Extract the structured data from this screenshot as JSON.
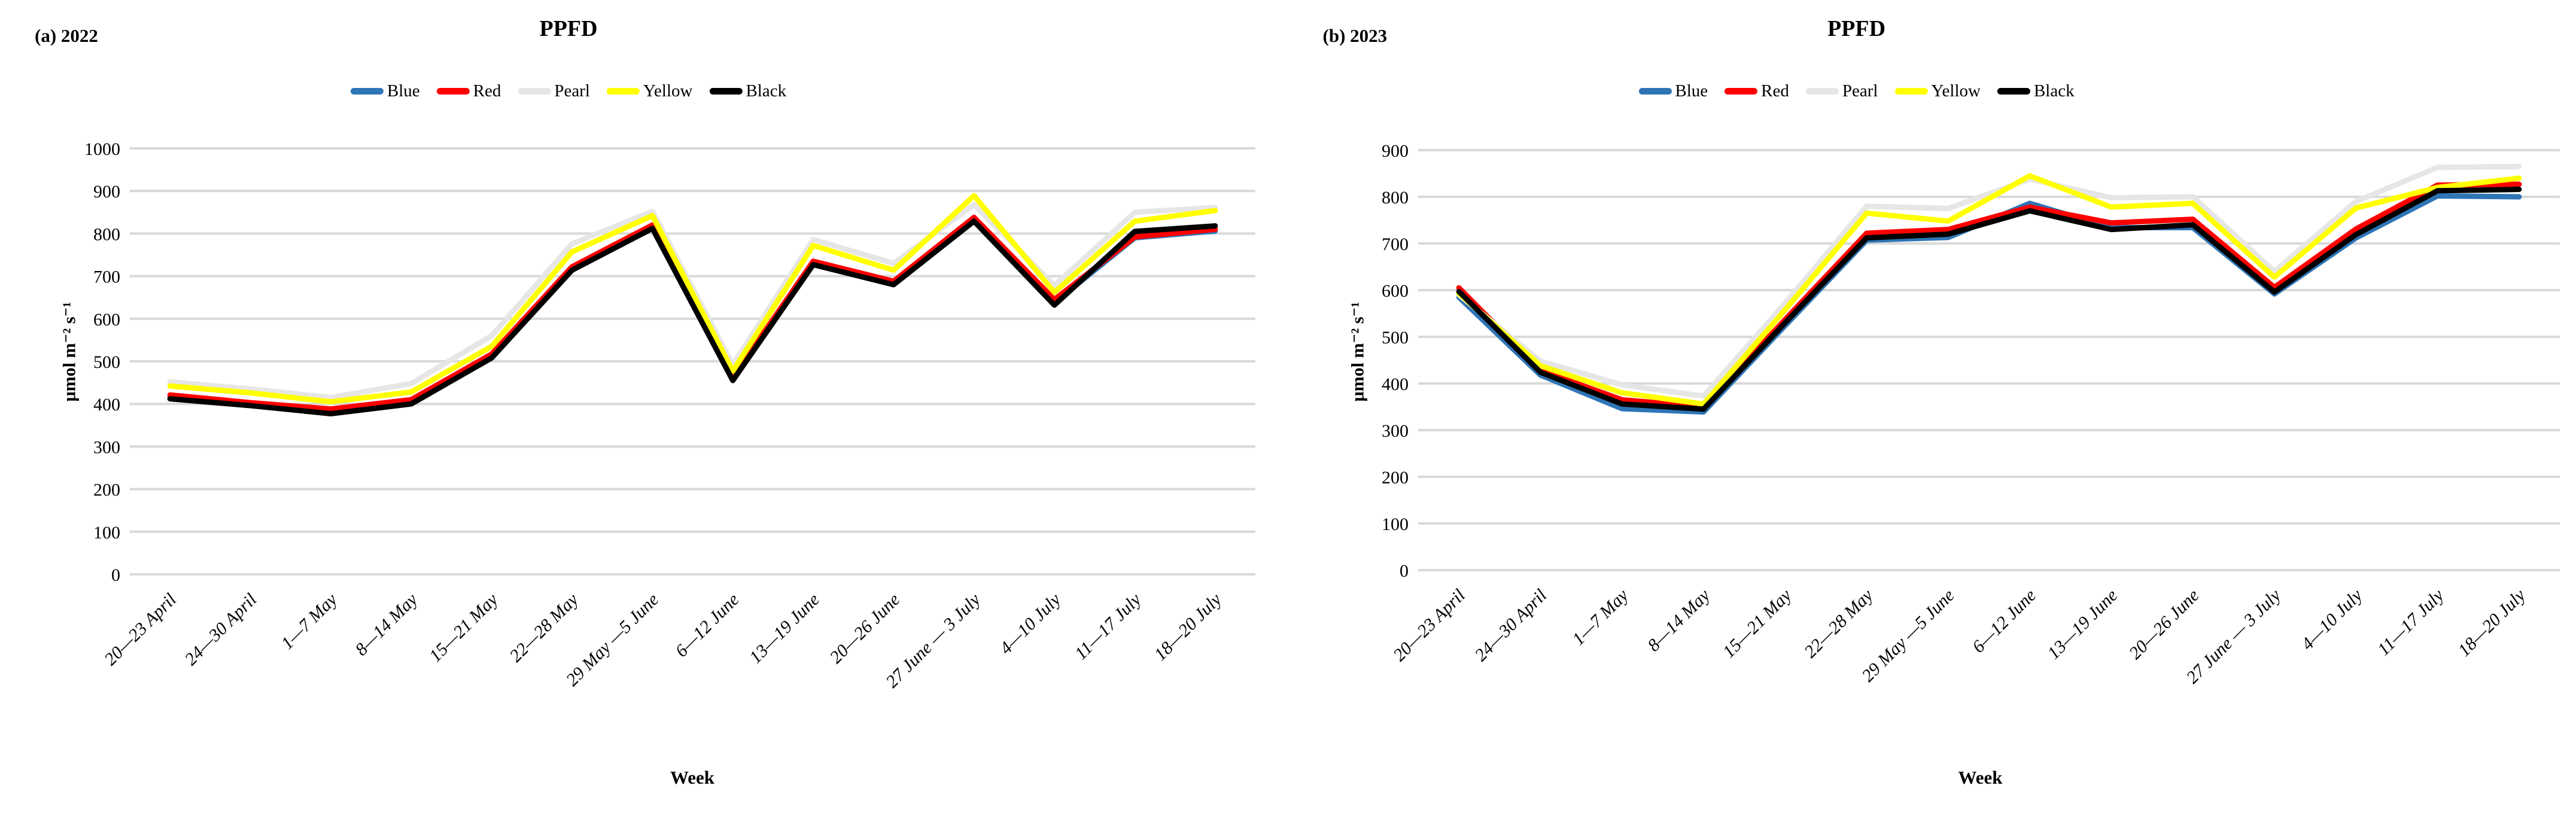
{
  "figure": {
    "background": "#ffffff",
    "gridline_color": "#D9D9D9",
    "panels": [
      {
        "panel_label": "(a) 2022",
        "title": "PPFD",
        "ylabel": "μmol m⁻² s⁻¹",
        "xlabel": "Week"
      },
      {
        "panel_label": "(b) 2023",
        "title": "PPFD",
        "ylabel": "μmol m⁻² s⁻¹",
        "xlabel": "Week"
      }
    ],
    "legend": [
      "Blue",
      "Red",
      "Pearl",
      "Yellow",
      "Black"
    ]
  },
  "chart_data": [
    {
      "type": "line",
      "panel_label": "(a) 2022",
      "title": "PPFD",
      "xlabel": "Week",
      "ylabel": "μmol m⁻² s⁻¹",
      "ylim": [
        0,
        1000
      ],
      "ytick_step": 100,
      "grid": true,
      "legend_position": "top-center",
      "categories": [
        "20—23 April",
        "24—30 April",
        "1—7 May",
        "8—14 May",
        "15—21 May",
        "22—28 May",
        "29 May —5 June",
        "6—12 June",
        "13—19 June",
        "20—26 June",
        "27 June — 3 July",
        "4—10 July",
        "11—17 July",
        "18—20 July"
      ],
      "series": [
        {
          "name": "Blue",
          "color": "#2E75B6",
          "values": [
            416,
            399,
            380,
            403,
            512,
            718,
            816,
            458,
            730,
            683,
            833,
            638,
            790,
            806
          ]
        },
        {
          "name": "Red",
          "color": "#FF0000",
          "values": [
            421,
            403,
            388,
            410,
            517,
            722,
            820,
            462,
            735,
            688,
            838,
            645,
            792,
            810
          ]
        },
        {
          "name": "Pearl",
          "color": "#E7E6E6",
          "values": [
            452,
            435,
            415,
            448,
            560,
            776,
            852,
            492,
            786,
            730,
            868,
            678,
            850,
            861
          ]
        },
        {
          "name": "Yellow",
          "color": "#FFFF00",
          "values": [
            442,
            426,
            405,
            428,
            535,
            757,
            842,
            477,
            772,
            714,
            889,
            662,
            829,
            854
          ]
        },
        {
          "name": "Black",
          "color": "#000000",
          "values": [
            412,
            396,
            377,
            400,
            508,
            714,
            812,
            455,
            727,
            680,
            829,
            632,
            805,
            818
          ]
        }
      ]
    },
    {
      "type": "line",
      "panel_label": "(b) 2023",
      "title": "PPFD",
      "xlabel": "Week",
      "ylabel": "μmol m⁻² s⁻¹",
      "ylim": [
        0,
        900
      ],
      "ytick_step": 100,
      "grid": true,
      "legend_position": "top-center",
      "categories": [
        "20—23 April",
        "24—30 April",
        "1—7 May",
        "8—14 May",
        "15—21 May",
        "22—28 May",
        "29 May —5 June",
        "6—12 June",
        "13—19 June",
        "20—26 June",
        "27 June — 3 July",
        "4—10 July",
        "11—17 July",
        "18—20 July"
      ],
      "series": [
        {
          "name": "Blue",
          "color": "#2E75B6",
          "values": [
            585,
            418,
            346,
            339,
            524,
            707,
            713,
            786,
            734,
            734,
            592,
            712,
            802,
            800
          ]
        },
        {
          "name": "Red",
          "color": "#FF0000",
          "values": [
            605,
            428,
            365,
            350,
            537,
            722,
            730,
            778,
            744,
            752,
            606,
            731,
            825,
            827
          ]
        },
        {
          "name": "Pearl",
          "color": "#E7E6E6",
          "values": [
            590,
            448,
            397,
            373,
            572,
            780,
            775,
            838,
            798,
            800,
            640,
            790,
            863,
            865
          ]
        },
        {
          "name": "Yellow",
          "color": "#FFFF00",
          "values": [
            593,
            438,
            380,
            356,
            558,
            765,
            748,
            845,
            778,
            786,
            628,
            776,
            820,
            840
          ]
        },
        {
          "name": "Black",
          "color": "#000000",
          "values": [
            597,
            424,
            356,
            345,
            530,
            712,
            720,
            770,
            730,
            740,
            596,
            719,
            813,
            816
          ]
        }
      ]
    }
  ]
}
